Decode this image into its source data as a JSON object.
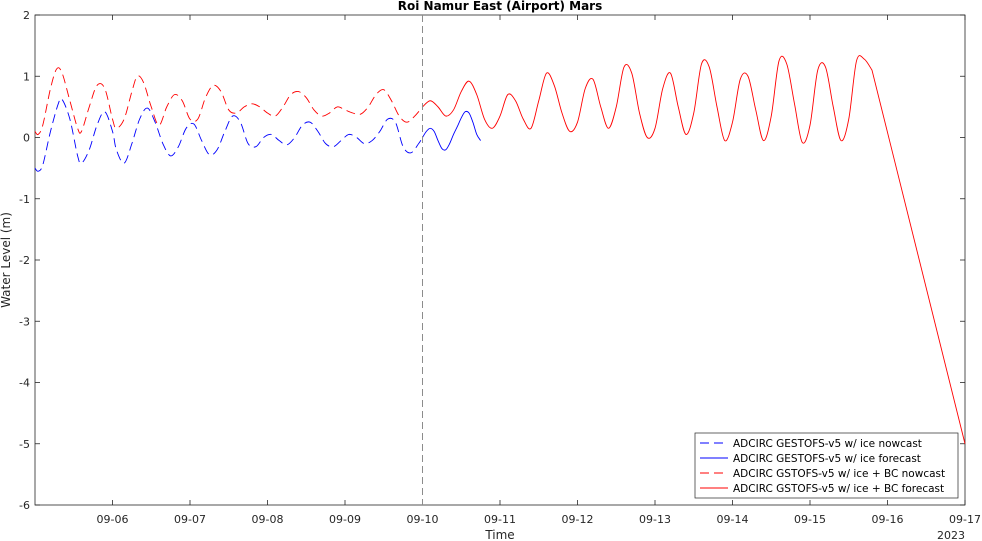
{
  "chart_data": {
    "type": "line",
    "title": "Roi Namur East (Airport) Mars",
    "xlabel": "Time",
    "ylabel": "Water Level (m)",
    "year_label": "2023",
    "x_ticks": [
      "09-06",
      "09-07",
      "09-08",
      "09-09",
      "09-10",
      "09-11",
      "09-12",
      "09-13",
      "09-14",
      "09-15",
      "09-16",
      "09-17"
    ],
    "xlim": [
      "2023-09-05 00:00",
      "2023-09-17 00:00"
    ],
    "ylim": [
      -6,
      2
    ],
    "y_ticks": [
      -6,
      -5,
      -4,
      -3,
      -2,
      -1,
      0,
      1,
      2
    ],
    "nowcast_marker": "2023-09-10 00:00",
    "legend_position": "bottom-right",
    "x_unit": "day of September 2023 (fractional)",
    "series": [
      {
        "name": "ADCIRC GESTOFS-v5 w/ ice nowcast",
        "color": "#0000ff",
        "style": "dashed",
        "x": [
          5.0,
          5.04,
          5.1,
          5.2,
          5.3,
          5.35,
          5.45,
          5.55,
          5.6,
          5.7,
          5.8,
          5.9,
          6.0,
          6.05,
          6.15,
          6.25,
          6.35,
          6.45,
          6.55,
          6.65,
          6.75,
          6.85,
          6.95,
          7.05,
          7.15,
          7.25,
          7.35,
          7.45,
          7.55,
          7.65,
          7.75,
          7.85,
          7.95,
          8.05,
          8.15,
          8.25,
          8.35,
          8.45,
          8.55,
          8.65,
          8.75,
          8.85,
          8.95,
          9.05,
          9.15,
          9.25,
          9.35,
          9.45,
          9.55,
          9.65,
          9.75,
          9.85,
          9.95,
          10.0
        ],
        "values": [
          -0.5,
          -0.55,
          -0.45,
          0.1,
          0.55,
          0.62,
          0.3,
          -0.3,
          -0.42,
          -0.2,
          0.2,
          0.42,
          0.1,
          -0.2,
          -0.42,
          -0.1,
          0.3,
          0.48,
          0.25,
          -0.1,
          -0.3,
          -0.15,
          0.15,
          0.22,
          -0.05,
          -0.28,
          -0.2,
          0.1,
          0.35,
          0.25,
          -0.1,
          -0.15,
          0.0,
          0.05,
          -0.05,
          -0.12,
          0.0,
          0.2,
          0.25,
          0.1,
          -0.1,
          -0.15,
          -0.05,
          0.05,
          0.0,
          -0.1,
          -0.05,
          0.1,
          0.3,
          0.25,
          -0.15,
          -0.25,
          -0.1,
          0.0
        ]
      },
      {
        "name": "ADCIRC GESTOFS-v5 w/ ice forecast",
        "color": "#0000ff",
        "style": "solid",
        "x": [
          10.0,
          10.05,
          10.1,
          10.15,
          10.2,
          10.25,
          10.3,
          10.35,
          10.4,
          10.45,
          10.5,
          10.55,
          10.6,
          10.65,
          10.7,
          10.75
        ],
        "values": [
          0.0,
          0.1,
          0.15,
          0.1,
          -0.05,
          -0.18,
          -0.2,
          -0.1,
          0.05,
          0.18,
          0.32,
          0.42,
          0.4,
          0.25,
          0.05,
          -0.05
        ]
      },
      {
        "name": "ADCIRC GSTOFS-v5 w/ ice + BC nowcast",
        "color": "#ff0000",
        "style": "dashed",
        "x": [
          5.0,
          5.04,
          5.1,
          5.2,
          5.28,
          5.35,
          5.45,
          5.55,
          5.6,
          5.7,
          5.8,
          5.9,
          6.0,
          6.05,
          6.15,
          6.25,
          6.32,
          6.4,
          6.5,
          6.6,
          6.7,
          6.8,
          6.9,
          7.0,
          7.1,
          7.2,
          7.3,
          7.4,
          7.5,
          7.6,
          7.7,
          7.8,
          7.9,
          8.0,
          8.1,
          8.2,
          8.3,
          8.4,
          8.5,
          8.6,
          8.7,
          8.8,
          8.9,
          9.0,
          9.1,
          9.2,
          9.3,
          9.4,
          9.5,
          9.6,
          9.7,
          9.8,
          9.9,
          10.0
        ],
        "values": [
          0.1,
          0.05,
          0.2,
          0.8,
          1.12,
          1.05,
          0.6,
          0.15,
          0.1,
          0.5,
          0.85,
          0.8,
          0.3,
          0.15,
          0.3,
          0.75,
          1.0,
          0.9,
          0.5,
          0.2,
          0.5,
          0.7,
          0.6,
          0.3,
          0.3,
          0.65,
          0.85,
          0.75,
          0.45,
          0.4,
          0.5,
          0.55,
          0.5,
          0.4,
          0.35,
          0.5,
          0.7,
          0.75,
          0.65,
          0.45,
          0.35,
          0.4,
          0.5,
          0.45,
          0.4,
          0.38,
          0.5,
          0.7,
          0.78,
          0.6,
          0.35,
          0.25,
          0.35,
          0.5
        ]
      },
      {
        "name": "ADCIRC GSTOFS-v5 w/ ice + BC forecast",
        "color": "#ff0000",
        "style": "solid",
        "x": [
          10.0,
          10.1,
          10.2,
          10.3,
          10.4,
          10.5,
          10.6,
          10.7,
          10.8,
          10.9,
          11.0,
          11.1,
          11.2,
          11.3,
          11.4,
          11.5,
          11.6,
          11.7,
          11.8,
          11.9,
          12.0,
          12.1,
          12.2,
          12.3,
          12.4,
          12.5,
          12.6,
          12.7,
          12.8,
          12.9,
          13.0,
          13.1,
          13.2,
          13.3,
          13.4,
          13.5,
          13.6,
          13.7,
          13.8,
          13.9,
          14.0,
          14.1,
          14.2,
          14.3,
          14.4,
          14.5,
          14.6,
          14.7,
          14.8,
          14.9,
          15.0,
          15.1,
          15.2,
          15.3,
          15.4,
          15.5,
          15.6,
          15.7,
          15.8,
          17.0
        ],
        "values": [
          0.5,
          0.6,
          0.5,
          0.35,
          0.45,
          0.75,
          0.92,
          0.7,
          0.3,
          0.15,
          0.35,
          0.7,
          0.6,
          0.3,
          0.15,
          0.6,
          1.05,
          0.85,
          0.4,
          0.1,
          0.25,
          0.8,
          0.95,
          0.5,
          0.15,
          0.5,
          1.15,
          1.05,
          0.4,
          0.0,
          0.15,
          0.8,
          1.05,
          0.5,
          0.05,
          0.4,
          1.2,
          1.15,
          0.5,
          -0.05,
          0.25,
          0.95,
          1.0,
          0.45,
          -0.05,
          0.35,
          1.25,
          1.2,
          0.55,
          -0.08,
          0.2,
          1.1,
          1.15,
          0.5,
          -0.05,
          0.3,
          1.25,
          1.28,
          1.1,
          -5.0
        ]
      }
    ]
  }
}
